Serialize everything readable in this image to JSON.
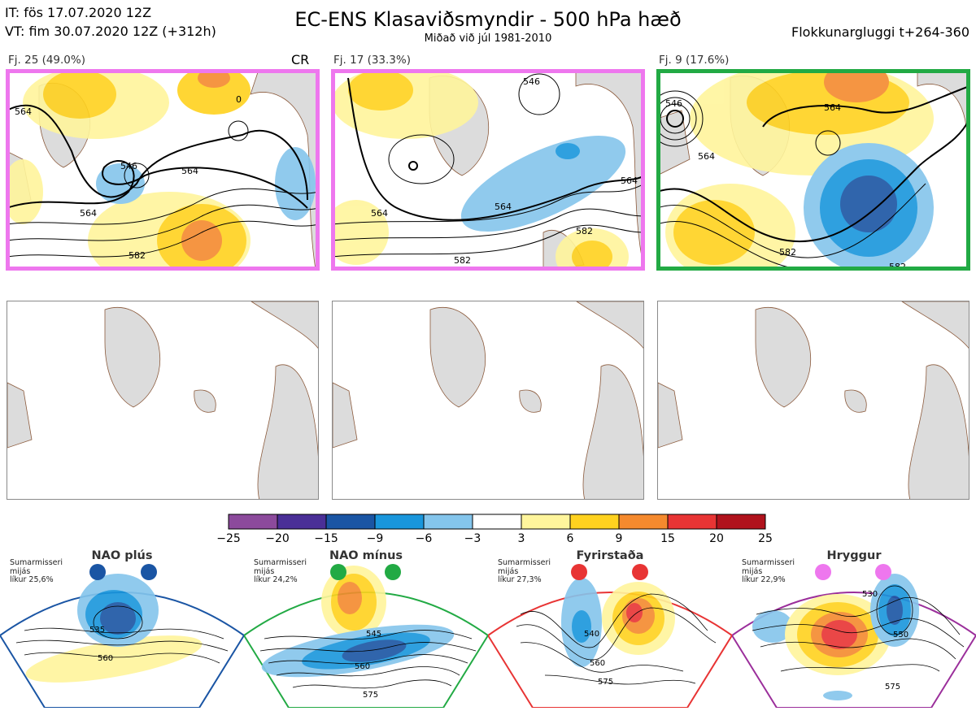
{
  "header": {
    "it_line": "IT: fös 17.07.2020 12Z",
    "vt_line": "VT: fim 30.07.2020 12Z  (+312h)",
    "title": "EC-ENS Klasaviðsmyndir - 500 hPa hæð",
    "subtitle": "Miðað við júl 1981-2010",
    "window": "Flokkunargluggi t+264-360"
  },
  "clusters": [
    {
      "label": "Fj. 25 (49.0%)",
      "frame_color": "#ee77ee",
      "contours": [
        "564",
        "546",
        "564",
        "564",
        "582",
        "0"
      ]
    },
    {
      "label": "Fj. 17 (33.3%)",
      "frame_color": "#ee77ee",
      "contours": [
        "546",
        "564",
        "564",
        "582",
        "582",
        "564"
      ]
    },
    {
      "label": "Fj. 9 (17.6%)",
      "frame_color": "#22aa44",
      "contours": [
        "546",
        "564",
        "564",
        "582",
        "582"
      ]
    }
  ],
  "cr_label": "CR",
  "colorbar": {
    "colors": [
      "#8c4a9c",
      "#4a2f97",
      "#1a55a4",
      "#1996dc",
      "#84c5ec",
      "#ffffff",
      "#fff59c",
      "#ffd21f",
      "#f58a2e",
      "#e83434",
      "#b0121c"
    ],
    "ticks": [
      "−25",
      "−20",
      "−15",
      "−9",
      "−6",
      "−3",
      "3",
      "6",
      "9",
      "15",
      "20",
      "25"
    ]
  },
  "regimes": [
    {
      "title": "NAO plús",
      "note": [
        "Sumarmisseri",
        "mijás",
        "líkur 25,6%"
      ],
      "color": "#1a55a4",
      "labels": [
        "535",
        "560"
      ]
    },
    {
      "title": "NAO mínus",
      "note": [
        "Sumarmisseri",
        "mijás",
        "líkur 24,2%"
      ],
      "color": "#22aa44",
      "labels": [
        "545",
        "560",
        "575"
      ]
    },
    {
      "title": "Fyrirstaða",
      "note": [
        "Sumarmisseri",
        "mijás",
        "líkur 27,3%"
      ],
      "color": "#e83434",
      "labels": [
        "540",
        "560",
        "575"
      ]
    },
    {
      "title": "Hryggur",
      "note": [
        "Sumarmisseri",
        "mijás",
        "líkur 22,9%"
      ],
      "color": "#ee77ee",
      "labels": [
        "530",
        "550",
        "575"
      ]
    }
  ]
}
